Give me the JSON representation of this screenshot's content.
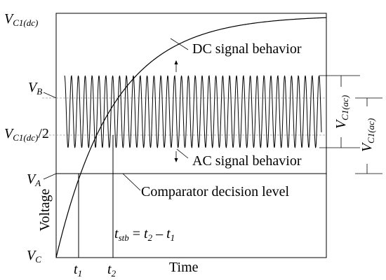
{
  "labels": {
    "vc1dc_main": "V",
    "vc1dc_sub": "C1(dc)",
    "vb_main": "V",
    "vb_sub": "B",
    "vhalf_main": "V",
    "vhalf_sub": "C1(dc)",
    "vhalf_tail": "/2",
    "va_main": "V",
    "va_sub": "A",
    "vc_main": "V",
    "vc_sub": "C",
    "t1_main": "t",
    "t1_sub": "1",
    "t2_main": "t",
    "t2_sub": "2",
    "dc_behavior": "DC signal behavior",
    "ac_behavior": "AC signal behavior",
    "comparator": "Comparator decision level",
    "voltage_axis": "Voltage",
    "time_axis": "Time",
    "vc1ac_inner": "V",
    "vc1ac_inner_sub": "C1(ac)",
    "vc1ac_outer": "V",
    "vc1ac_outer_sub": "C1(ac)"
  },
  "equation": {
    "lhs_main": "t",
    "lhs_sub": "stb",
    "eq": " = ",
    "t2_main": "t",
    "t2_sub": "2",
    "minus": " – ",
    "t1_main": "t",
    "t1_sub": "1"
  },
  "colors": {
    "line": "#000000",
    "dashed": "#9a9a9a",
    "background": "#ffffff"
  }
}
